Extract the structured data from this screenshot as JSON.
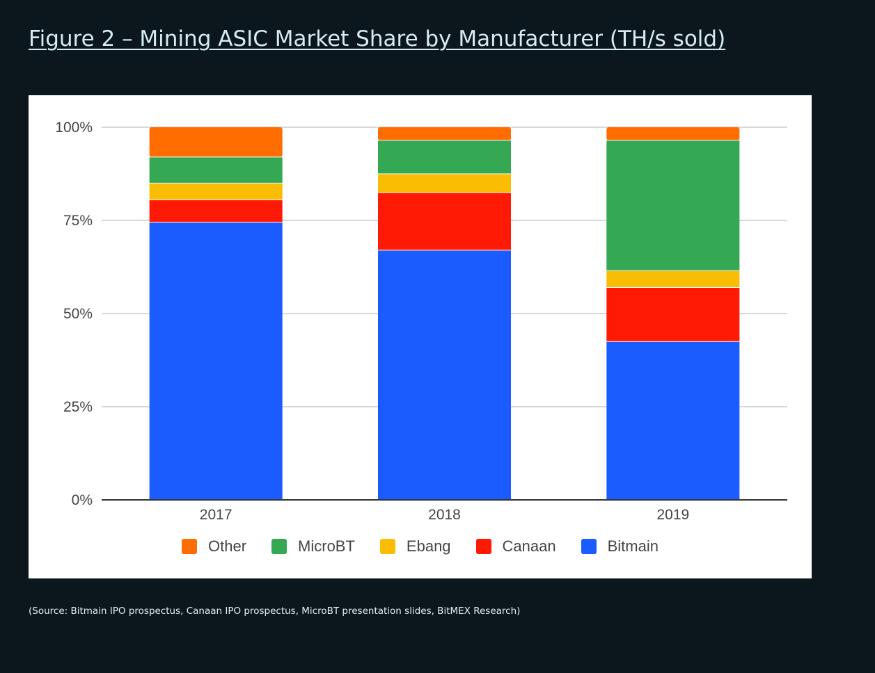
{
  "page": {
    "title": "Figure 2 – Mining ASIC Market Share by Manufacturer (TH/s sold)",
    "source": "(Source: Bitmain IPO prospectus, Canaan IPO prospectus, MicroBT presentation slides, BitMEX Research)"
  },
  "chart_data": {
    "type": "bar",
    "stacked": true,
    "normalized": true,
    "categories": [
      "2017",
      "2018",
      "2019"
    ],
    "series": [
      {
        "name": "Bitmain",
        "color": "#1a5cff",
        "values": [
          74.5,
          67.0,
          42.5
        ]
      },
      {
        "name": "Canaan",
        "color": "#ff1a05",
        "values": [
          6.0,
          15.5,
          14.5
        ]
      },
      {
        "name": "Ebang",
        "color": "#fbbc04",
        "values": [
          4.5,
          5.0,
          4.5
        ]
      },
      {
        "name": "MicroBT",
        "color": "#34a853",
        "values": [
          7.0,
          9.0,
          35.0
        ]
      },
      {
        "name": "Other",
        "color": "#ff6d01",
        "values": [
          8.0,
          3.5,
          3.5
        ]
      }
    ],
    "legend_order": [
      "Other",
      "MicroBT",
      "Ebang",
      "Canaan",
      "Bitmain"
    ],
    "ylim": [
      0,
      100
    ],
    "yticks": [
      "0%",
      "25%",
      "50%",
      "75%",
      "100%"
    ],
    "grid": true,
    "legend_position": "bottom"
  }
}
